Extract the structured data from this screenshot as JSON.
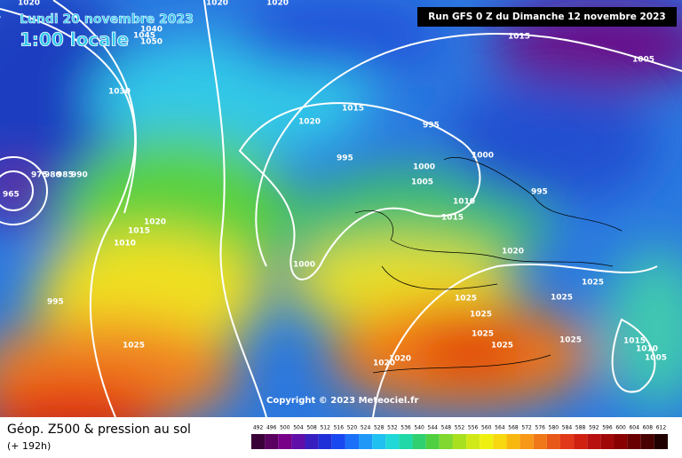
{
  "header": {
    "run": "Run GFS 0 Z du Dimanche 12 novembre 2023",
    "date": "Lundi 20 novembre 2023",
    "time": "1:00 locale"
  },
  "copyright": "Copyright © 2023 Meteociel.fr",
  "footer": {
    "title": "Géop. Z500 & pression au sol",
    "lead": "(+ 192h)"
  },
  "scale": {
    "labels": [
      "492",
      "496",
      "500",
      "504",
      "508",
      "512",
      "516",
      "520",
      "524",
      "528",
      "532",
      "536",
      "540",
      "544",
      "548",
      "552",
      "556",
      "560",
      "564",
      "568",
      "572",
      "576",
      "580",
      "584",
      "588",
      "592",
      "596",
      "600",
      "604",
      "608",
      "612"
    ]
  },
  "isobars": [
    "1020",
    "1020",
    "1020",
    "1040",
    "1045",
    "1050",
    "1030",
    "1015",
    "1005",
    "1020",
    "1015",
    "995",
    "995",
    "1000",
    "1000",
    "1005",
    "1010",
    "995",
    "1015",
    "1020",
    "1025",
    "1025",
    "1000",
    "1025",
    "1025",
    "1025",
    "1025",
    "1025",
    "1015",
    "1010",
    "1005",
    "1020",
    "1020",
    "1020",
    "1015",
    "1010",
    "995",
    "1025",
    "965",
    "975",
    "980",
    "985",
    "990"
  ]
}
